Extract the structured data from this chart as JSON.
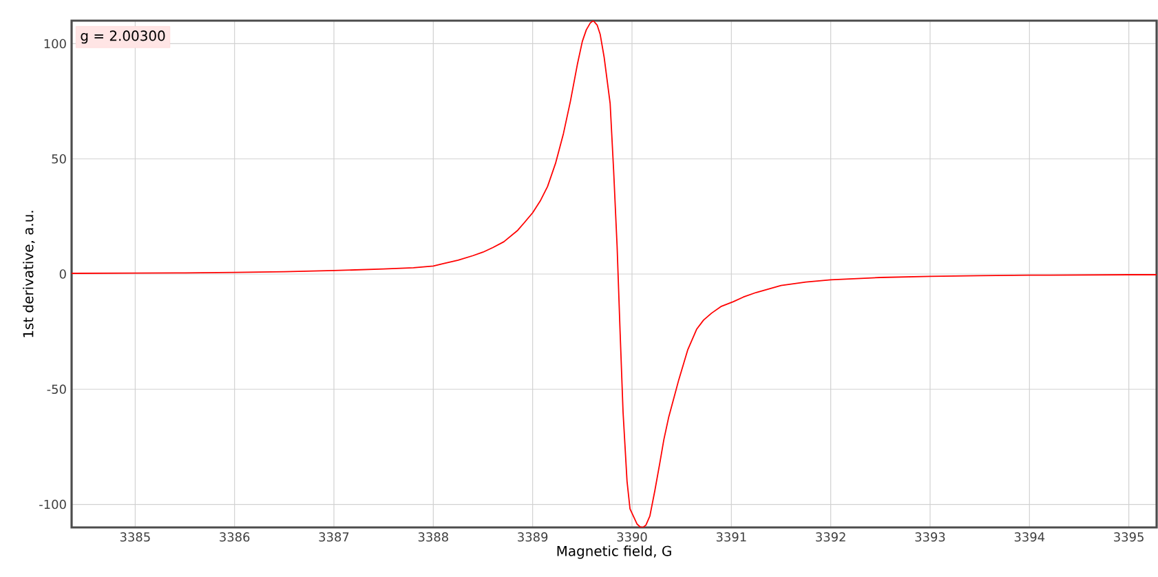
{
  "chart_data": {
    "type": "line",
    "xlabel": "Magnetic field, G",
    "ylabel": "1st derivative, a.u.",
    "annotations": [
      "g = 2.00300"
    ],
    "xlim": [
      3384.36,
      3395.28
    ],
    "ylim": [
      -110,
      110
    ],
    "xticks": [
      3385,
      3386,
      3387,
      3388,
      3389,
      3390,
      3391,
      3392,
      3393,
      3394,
      3395
    ],
    "yticks": [
      -100,
      -50,
      0,
      50,
      100
    ],
    "grid": true,
    "marker": "none",
    "line_style": "solid",
    "series": [
      {
        "color": "#ff0000",
        "x": [
          3384.36,
          3385,
          3385.5,
          3386,
          3386.5,
          3387,
          3387.5,
          3387.8,
          3388,
          3388.1,
          3388.25,
          3388.4,
          3388.5,
          3388.6,
          3388.71,
          3388.85,
          3388.92,
          3389,
          3389.08,
          3389.15,
          3389.23,
          3389.31,
          3389.38,
          3389.45,
          3389.5,
          3389.54,
          3389.58,
          3389.61,
          3389.65,
          3389.68,
          3389.72,
          3389.78,
          3389.815,
          3389.85,
          3389.88,
          3389.91,
          3389.95,
          3389.98,
          3390.05,
          3390.08,
          3390.11,
          3390.14,
          3390.18,
          3390.23,
          3390.28,
          3390.32,
          3390.37,
          3390.42,
          3390.47,
          3390.56,
          3390.65,
          3390.72,
          3390.8,
          3390.9,
          3391.02,
          3391.12,
          3391.25,
          3391.5,
          3391.75,
          3392,
          3392.5,
          3393,
          3393.5,
          3394,
          3394.5,
          3395,
          3395.28
        ],
        "values": [
          0.3,
          0.4,
          0.5,
          0.7,
          1,
          1.5,
          2.2,
          2.7,
          3.5,
          4.5,
          6,
          8,
          9.5,
          11.5,
          14,
          19,
          22.5,
          26.6,
          32,
          38,
          48,
          61,
          75,
          91,
          101,
          106,
          109,
          110,
          108,
          104,
          94,
          74,
          45,
          12,
          -25,
          -60,
          -90,
          -102,
          -108.5,
          -109.7,
          -110,
          -109,
          -105,
          -94,
          -82,
          -72,
          -62,
          -54,
          -46,
          -33,
          -24,
          -20,
          -17,
          -14,
          -12,
          -10,
          -8,
          -5,
          -3.5,
          -2.5,
          -1.5,
          -1,
          -0.7,
          -0.5,
          -0.4,
          -0.3,
          -0.3
        ]
      }
    ]
  }
}
